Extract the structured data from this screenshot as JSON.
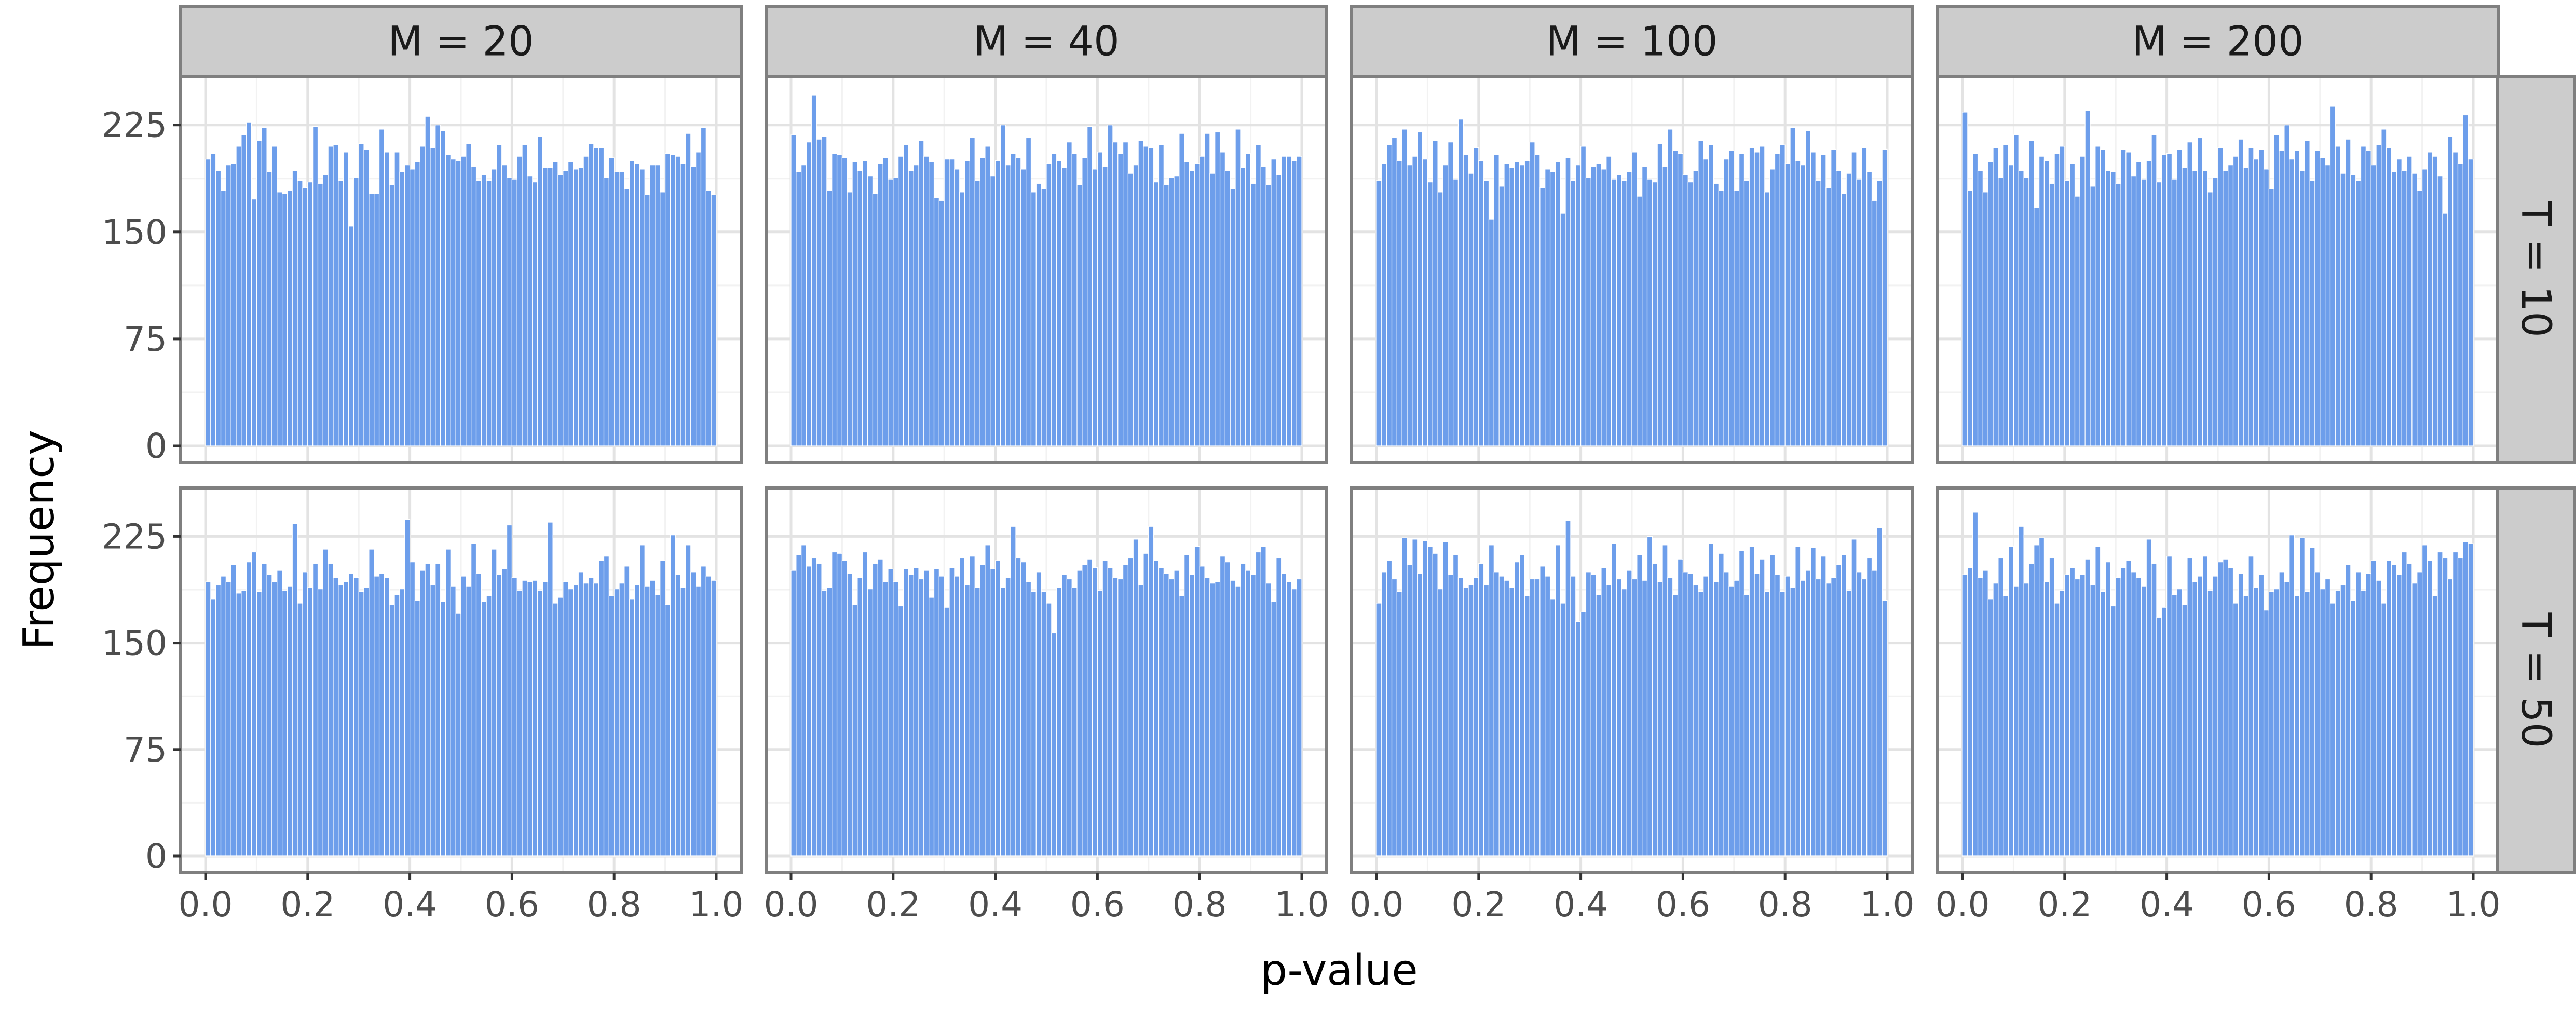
{
  "chart_data": {
    "type": "bar",
    "subtype": "faceted-histogram",
    "xlabel": "p-value",
    "ylabel": "Frequency",
    "bins": 100,
    "bin_width": 0.01,
    "xlim": [
      0.0,
      1.0
    ],
    "ylim": [
      0,
      250
    ],
    "x_ticks": [
      "0.0",
      "0.2",
      "0.4",
      "0.6",
      "0.8",
      "1.0"
    ],
    "y_ticks": [
      "0",
      "75",
      "150",
      "225"
    ],
    "column_labels": [
      "M = 20",
      "M = 40",
      "M = 100",
      "M = 200"
    ],
    "row_labels": [
      "T = 10",
      "T = 50"
    ],
    "bar_color": "#6d9eeb",
    "bar_edge_color": "#ffffff",
    "grid": true,
    "panels": [
      {
        "row": "T = 10",
        "col": "M = 20",
        "values": [
          201,
          205,
          193,
          179,
          197,
          198,
          210,
          218,
          227,
          173,
          214,
          223,
          192,
          210,
          178,
          177,
          179,
          193,
          186,
          181,
          185,
          224,
          184,
          190,
          210,
          211,
          186,
          206,
          154,
          188,
          212,
          208,
          177,
          177,
          222,
          206,
          183,
          206,
          192,
          197,
          194,
          199,
          210,
          231,
          209,
          225,
          221,
          204,
          201,
          200,
          203,
          212,
          196,
          186,
          190,
          186,
          194,
          211,
          197,
          188,
          187,
          203,
          211,
          189,
          185,
          217,
          195,
          195,
          199,
          190,
          193,
          199,
          194,
          195,
          203,
          212,
          209,
          209,
          188,
          202,
          192,
          192,
          180,
          200,
          198,
          194,
          176,
          197,
          197,
          178,
          205,
          204,
          203,
          198,
          219,
          196,
          206,
          223,
          179,
          176
        ]
      },
      {
        "row": "T = 10",
        "col": "M = 40",
        "values": [
          218,
          192,
          197,
          213,
          246,
          215,
          217,
          179,
          205,
          204,
          202,
          178,
          199,
          193,
          200,
          189,
          177,
          198,
          202,
          187,
          188,
          203,
          211,
          193,
          197,
          214,
          203,
          199,
          174,
          172,
          201,
          201,
          194,
          178,
          200,
          216,
          186,
          202,
          210,
          189,
          200,
          225,
          197,
          205,
          202,
          194,
          216,
          178,
          184,
          180,
          198,
          205,
          200,
          195,
          213,
          205,
          183,
          202,
          224,
          194,
          206,
          196,
          225,
          213,
          205,
          213,
          191,
          197,
          214,
          210,
          209,
          185,
          211,
          183,
          188,
          189,
          219,
          199,
          193,
          198,
          203,
          219,
          191,
          220,
          206,
          193,
          180,
          222,
          195,
          205,
          184,
          211,
          196,
          183,
          201,
          190,
          203,
          203,
          200,
          203
        ]
      },
      {
        "row": "T = 10",
        "col": "M = 100",
        "values": [
          186,
          198,
          211,
          216,
          200,
          222,
          197,
          203,
          220,
          201,
          185,
          214,
          178,
          197,
          213,
          187,
          229,
          204,
          191,
          209,
          200,
          186,
          159,
          204,
          182,
          198,
          195,
          199,
          197,
          200,
          213,
          204,
          181,
          194,
          192,
          199,
          163,
          202,
          186,
          197,
          210,
          188,
          196,
          198,
          194,
          203,
          187,
          190,
          186,
          192,
          206,
          175,
          196,
          187,
          185,
          212,
          196,
          222,
          207,
          205,
          190,
          185,
          193,
          214,
          201,
          211,
          184,
          179,
          201,
          207,
          179,
          205,
          186,
          209,
          206,
          210,
          178,
          194,
          205,
          211,
          198,
          223,
          200,
          197,
          221,
          206,
          186,
          204,
          181,
          208,
          193,
          177,
          191,
          206,
          187,
          209,
          192,
          172,
          186,
          208
        ]
      },
      {
        "row": "T = 10",
        "col": "M = 200",
        "values": [
          234,
          179,
          205,
          193,
          178,
          199,
          209,
          188,
          211,
          197,
          218,
          193,
          188,
          214,
          167,
          203,
          200,
          184,
          205,
          210,
          186,
          198,
          175,
          203,
          235,
          182,
          210,
          208,
          193,
          192,
          184,
          208,
          206,
          189,
          199,
          187,
          200,
          218,
          185,
          204,
          205,
          187,
          208,
          195,
          213,
          193,
          216,
          193,
          178,
          188,
          209,
          193,
          197,
          203,
          215,
          195,
          209,
          201,
          208,
          194,
          180,
          218,
          207,
          225,
          201,
          207,
          193,
          214,
          186,
          207,
          202,
          197,
          238,
          210,
          191,
          215,
          190,
          186,
          210,
          207,
          197,
          211,
          222,
          209,
          192,
          201,
          193,
          203,
          191,
          179,
          194,
          206,
          203,
          189,
          163,
          217,
          206,
          198,
          232,
          201
        ]
      },
      {
        "row": "T = 50",
        "col": "M = 20",
        "values": [
          193,
          181,
          191,
          197,
          193,
          205,
          185,
          187,
          207,
          214,
          186,
          206,
          198,
          193,
          201,
          187,
          190,
          234,
          178,
          200,
          189,
          206,
          188,
          216,
          206,
          196,
          191,
          193,
          199,
          196,
          186,
          189,
          216,
          197,
          199,
          196,
          177,
          184,
          188,
          237,
          207,
          180,
          201,
          206,
          191,
          206,
          179,
          216,
          190,
          171,
          197,
          190,
          220,
          199,
          179,
          183,
          216,
          198,
          202,
          233,
          196,
          187,
          194,
          193,
          194,
          187,
          193,
          235,
          178,
          182,
          193,
          188,
          191,
          200,
          192,
          196,
          192,
          208,
          211,
          183,
          188,
          192,
          204,
          181,
          191,
          219,
          190,
          194,
          184,
          208,
          177,
          226,
          198,
          189,
          219,
          200,
          190,
          204,
          197,
          194
        ]
      },
      {
        "row": "T = 50",
        "col": "M = 40",
        "values": [
          201,
          212,
          219,
          204,
          210,
          206,
          187,
          189,
          214,
          213,
          208,
          199,
          177,
          196,
          214,
          188,
          206,
          209,
          193,
          202,
          193,
          176,
          202,
          198,
          203,
          195,
          201,
          182,
          202,
          197,
          175,
          203,
          197,
          210,
          191,
          211,
          189,
          205,
          219,
          202,
          208,
          189,
          196,
          232,
          210,
          207,
          193,
          186,
          200,
          186,
          178,
          157,
          189,
          198,
          195,
          189,
          201,
          205,
          209,
          203,
          187,
          208,
          203,
          196,
          195,
          205,
          210,
          223,
          191,
          213,
          232,
          208,
          203,
          199,
          195,
          201,
          183,
          212,
          198,
          218,
          204,
          196,
          192,
          193,
          211,
          207,
          194,
          190,
          206,
          201,
          198,
          214,
          218,
          192,
          179,
          210,
          199,
          193,
          188,
          195
        ]
      },
      {
        "row": "T = 50",
        "col": "M = 100",
        "values": [
          178,
          200,
          208,
          195,
          186,
          224,
          205,
          223,
          199,
          222,
          218,
          213,
          188,
          221,
          198,
          212,
          196,
          189,
          191,
          196,
          206,
          191,
          219,
          200,
          197,
          194,
          189,
          207,
          212,
          183,
          195,
          195,
          204,
          197,
          181,
          219,
          178,
          236,
          197,
          165,
          172,
          200,
          198,
          184,
          203,
          191,
          220,
          195,
          188,
          201,
          195,
          212,
          194,
          225,
          206,
          193,
          219,
          196,
          184,
          209,
          200,
          199,
          191,
          186,
          197,
          220,
          193,
          213,
          200,
          190,
          194,
          215,
          184,
          218,
          199,
          209,
          186,
          212,
          198,
          186,
          197,
          189,
          218,
          194,
          201,
          217,
          195,
          211,
          192,
          196,
          205,
          212,
          187,
          223,
          200,
          195,
          210,
          201,
          231,
          180
        ]
      },
      {
        "row": "T = 50",
        "col": "M = 200",
        "values": [
          198,
          203,
          242,
          196,
          201,
          181,
          192,
          210,
          183,
          218,
          190,
          232,
          192,
          206,
          219,
          224,
          193,
          210,
          178,
          187,
          198,
          203,
          195,
          198,
          209,
          191,
          218,
          186,
          207,
          176,
          196,
          203,
          208,
          200,
          196,
          190,
          223,
          206,
          168,
          175,
          211,
          184,
          188,
          177,
          210,
          193,
          197,
          211,
          187,
          197,
          207,
          209,
          203,
          178,
          199,
          183,
          211,
          189,
          198,
          173,
          186,
          188,
          200,
          193,
          226,
          183,
          224,
          186,
          217,
          200,
          188,
          195,
          178,
          187,
          191,
          205,
          180,
          200,
          187,
          199,
          208,
          194,
          178,
          208,
          205,
          198,
          214,
          206,
          192,
          200,
          219,
          208,
          183,
          214,
          210,
          195,
          214,
          210,
          221,
          220
        ]
      }
    ]
  }
}
